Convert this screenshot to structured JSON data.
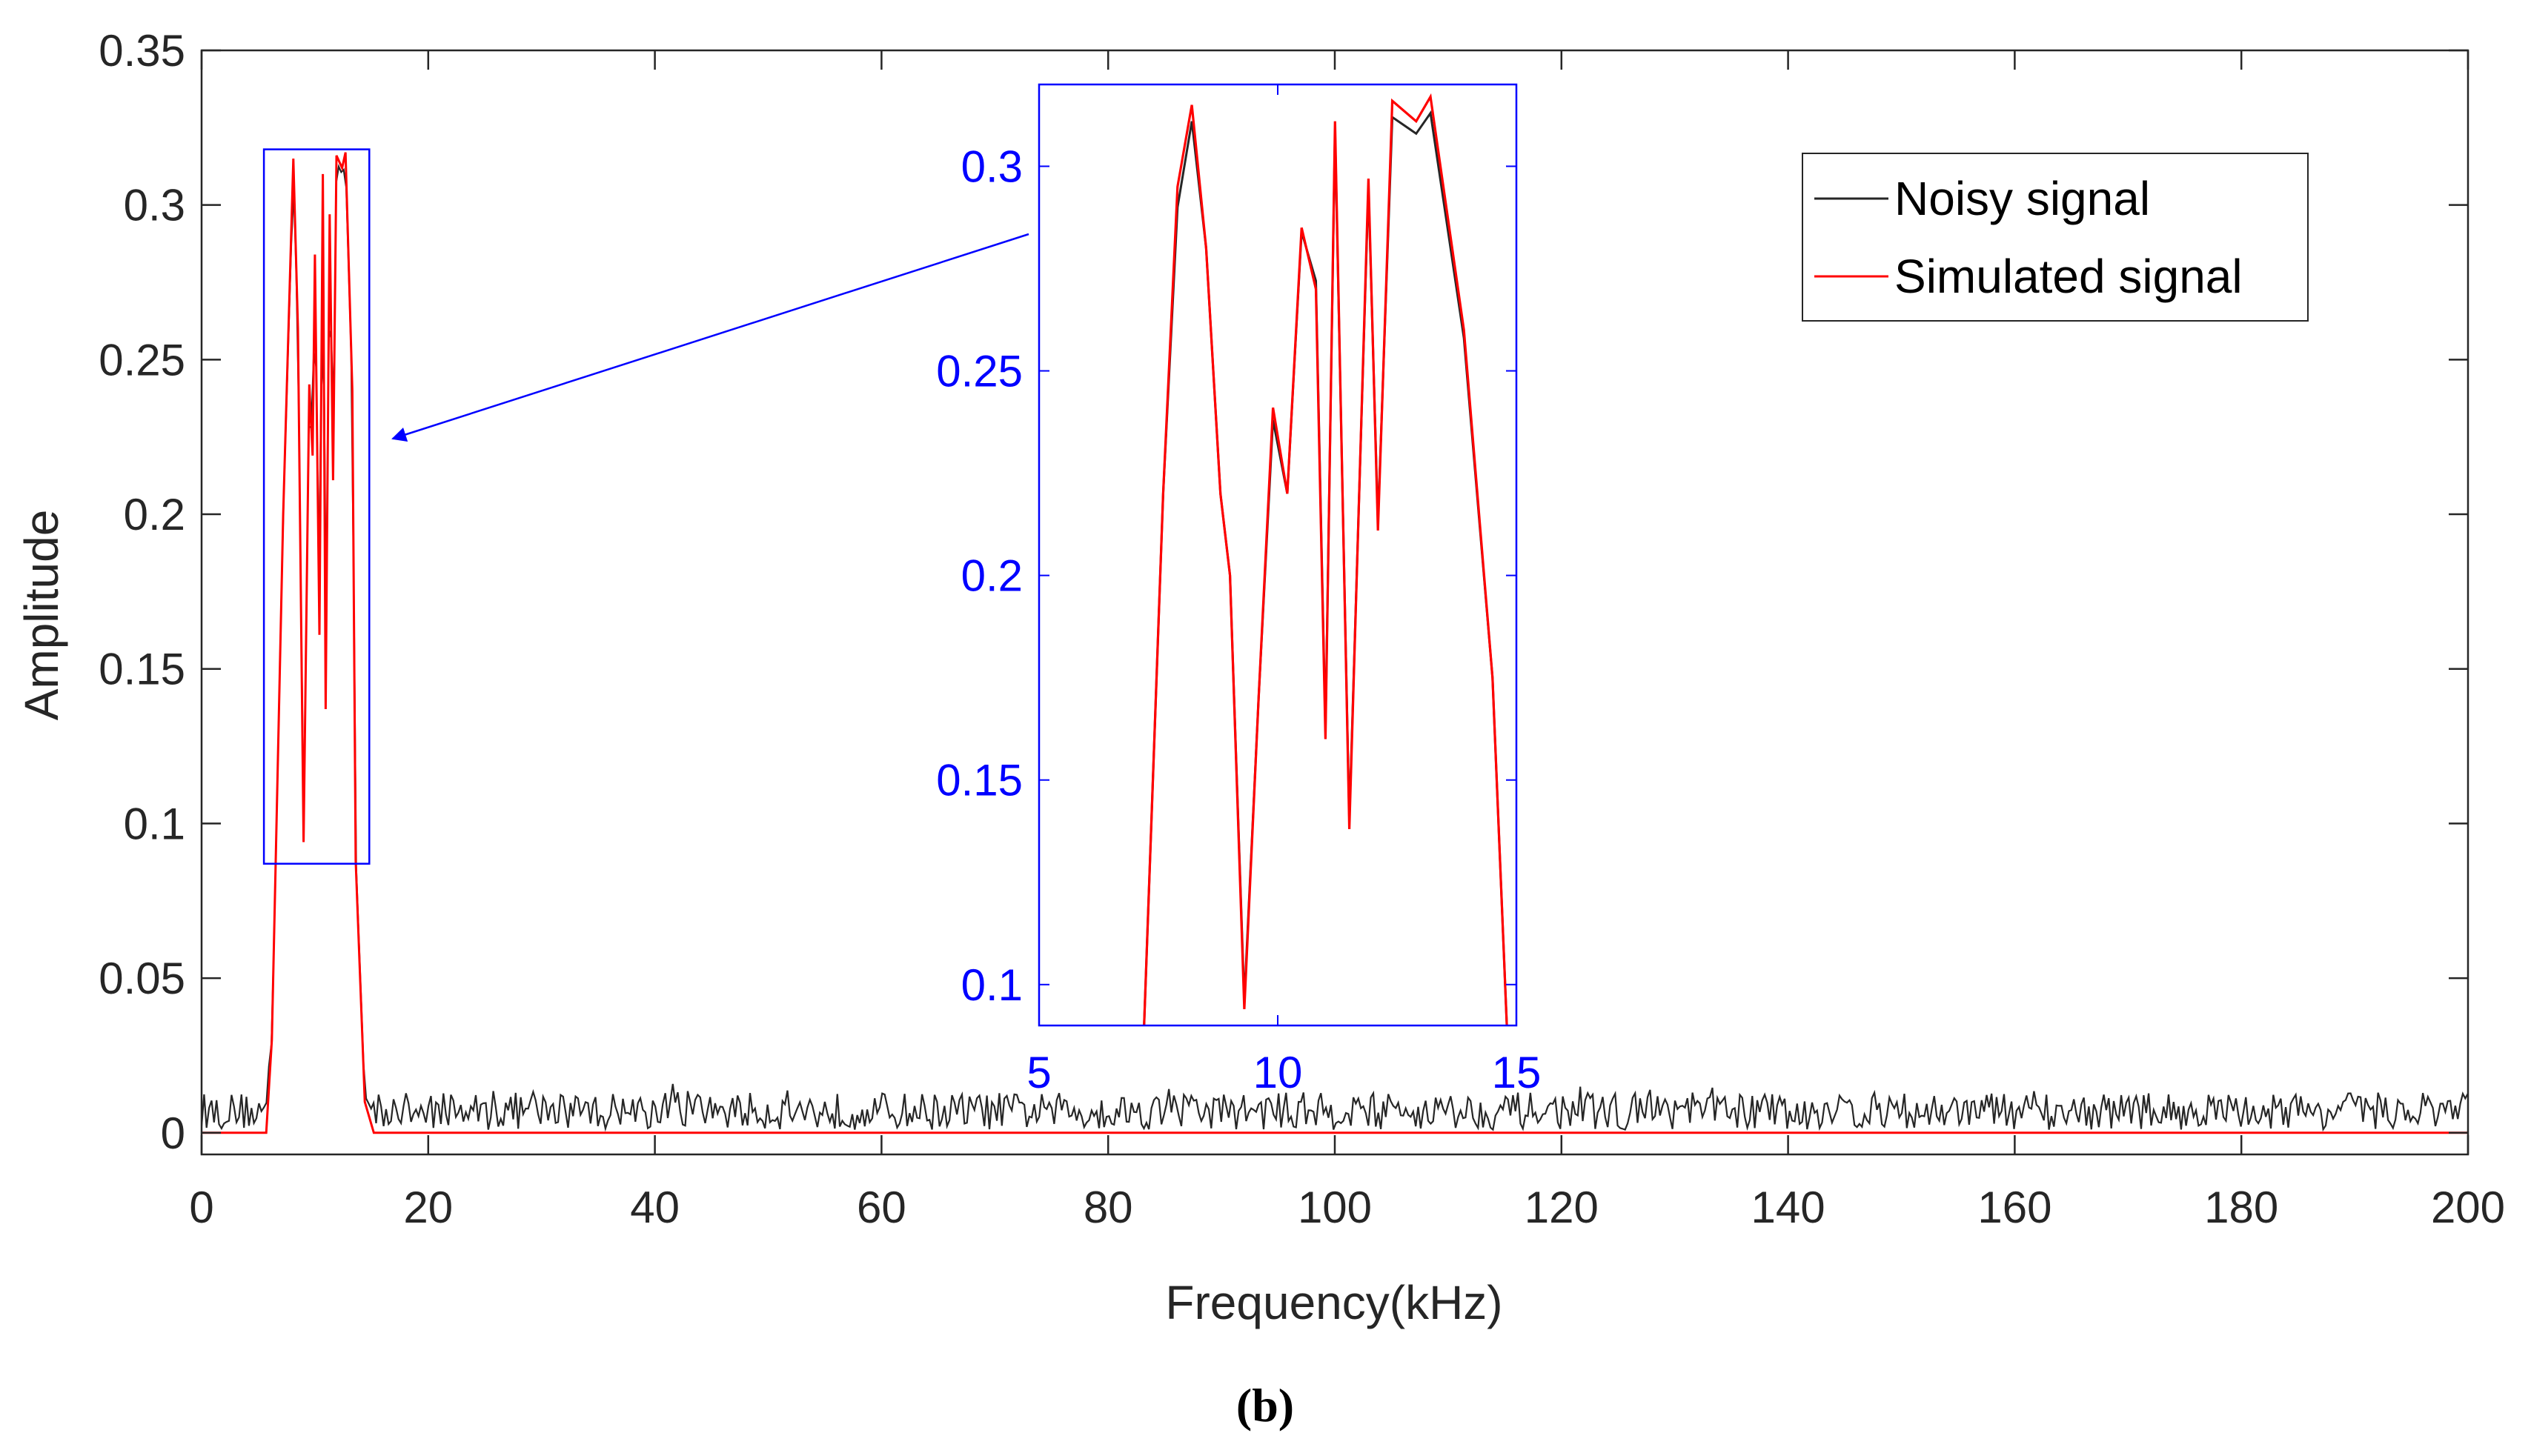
{
  "panel_label": "(b)",
  "colors": {
    "noisy": "#262626",
    "simulated": "#ff0000",
    "inset": "#0000ff",
    "axis": "#262626"
  },
  "chart_data": [
    {
      "id": "main",
      "type": "line",
      "title": "",
      "xlabel": "Frequency(kHz)",
      "ylabel": "Amplitude",
      "xlim": [
        0,
        200
      ],
      "ylim": [
        -0.007,
        0.35
      ],
      "xticks": [
        0,
        20,
        40,
        60,
        80,
        100,
        120,
        140,
        160,
        180,
        200
      ],
      "xtick_labels": [
        "0",
        "20",
        "40",
        "60",
        "80",
        "100",
        "120",
        "140",
        "160",
        "180",
        "200"
      ],
      "yticks": [
        0,
        0.05,
        0.1,
        0.15,
        0.2,
        0.25,
        0.3,
        0.35
      ],
      "ytick_labels": [
        "0",
        "0.05",
        "0.1",
        "0.15",
        "0.2",
        "0.25",
        "0.3",
        "0.35"
      ],
      "grid": false,
      "legend": {
        "placement": "top-right",
        "entries": [
          {
            "label": "Noisy signal",
            "series": "noisy"
          },
          {
            "label": "Simulated signal",
            "series": "simulated"
          }
        ]
      },
      "series": [
        {
          "name": "Noisy signal",
          "key": "noisy",
          "noise_floor": {
            "x_range": [
              0,
              200
            ],
            "mean": 0.008,
            "min": 0.001,
            "max": 0.017
          },
          "points": [
            [
              0,
              0.006
            ],
            [
              5.5,
              0.007
            ],
            [
              6.2,
              0.03
            ],
            [
              7.2,
              0.2
            ],
            [
              8.1,
              0.31
            ],
            [
              8.5,
              0.26
            ],
            [
              9.0,
              0.095
            ],
            [
              9.5,
              0.24
            ],
            [
              9.8,
              0.22
            ],
            [
              10.0,
              0.285
            ],
            [
              10.4,
              0.16
            ],
            [
              10.7,
              0.31
            ],
            [
              10.95,
              0.138
            ],
            [
              11.3,
              0.296
            ],
            [
              11.6,
              0.212
            ],
            [
              11.9,
              0.314
            ],
            [
              12.4,
              0.31
            ],
            [
              12.7,
              0.313
            ],
            [
              13.3,
              0.24
            ],
            [
              13.6,
              0.09
            ],
            [
              14.4,
              0.012
            ],
            [
              15.2,
              0.006
            ],
            [
              200,
              0.007
            ]
          ]
        },
        {
          "name": "Simulated signal",
          "key": "simulated",
          "points": [
            [
              0,
              0.0
            ],
            [
              5.7,
              0.0
            ],
            [
              6.2,
              0.03
            ],
            [
              7.2,
              0.2
            ],
            [
              8.1,
              0.315
            ],
            [
              8.5,
              0.26
            ],
            [
              9.0,
              0.094
            ],
            [
              9.5,
              0.242
            ],
            [
              9.8,
              0.219
            ],
            [
              10.0,
              0.284
            ],
            [
              10.4,
              0.161
            ],
            [
              10.7,
              0.31
            ],
            [
              10.95,
              0.137
            ],
            [
              11.3,
              0.297
            ],
            [
              11.6,
              0.211
            ],
            [
              11.9,
              0.316
            ],
            [
              12.4,
              0.312
            ],
            [
              12.7,
              0.317
            ],
            [
              13.3,
              0.24
            ],
            [
              13.6,
              0.088
            ],
            [
              14.4,
              0.01
            ],
            [
              15.2,
              0.0
            ],
            [
              200,
              0.0
            ]
          ]
        }
      ],
      "annotations": [
        {
          "type": "zoom-box",
          "x_range": [
            5.5,
            14.8
          ],
          "y_range": [
            0.087,
            0.318
          ]
        },
        {
          "type": "arrow",
          "from": "inset",
          "to": "zoom-box"
        }
      ]
    },
    {
      "id": "inset",
      "type": "line",
      "title": "",
      "xlabel": "",
      "ylabel": "",
      "xlim": [
        5,
        15
      ],
      "ylim": [
        0.09,
        0.32
      ],
      "xticks": [
        5,
        10,
        15
      ],
      "xtick_labels": [
        "5",
        "10",
        "15"
      ],
      "yticks": [
        0.1,
        0.15,
        0.2,
        0.25,
        0.3
      ],
      "ytick_labels": [
        "0.1",
        "0.15",
        "0.2",
        "0.25",
        "0.3"
      ],
      "grid": false,
      "series": [
        {
          "name": "Noisy signal",
          "key": "noisy",
          "points": [
            [
              7.2,
              0.09
            ],
            [
              7.6,
              0.22
            ],
            [
              7.9,
              0.29
            ],
            [
              8.2,
              0.311
            ],
            [
              8.5,
              0.28
            ],
            [
              8.8,
              0.22
            ],
            [
              9.0,
              0.2
            ],
            [
              9.3,
              0.096
            ],
            [
              9.6,
              0.17
            ],
            [
              9.9,
              0.238
            ],
            [
              10.2,
              0.22
            ],
            [
              10.5,
              0.284
            ],
            [
              10.8,
              0.272
            ],
            [
              11.0,
              0.162
            ],
            [
              11.2,
              0.309
            ],
            [
              11.5,
              0.14
            ],
            [
              11.9,
              0.295
            ],
            [
              12.1,
              0.213
            ],
            [
              12.4,
              0.312
            ],
            [
              12.9,
              0.308
            ],
            [
              13.2,
              0.313
            ],
            [
              13.9,
              0.258
            ],
            [
              14.5,
              0.175
            ],
            [
              14.8,
              0.09
            ]
          ]
        },
        {
          "name": "Simulated signal",
          "key": "simulated",
          "points": [
            [
              7.2,
              0.09
            ],
            [
              7.6,
              0.22
            ],
            [
              7.9,
              0.295
            ],
            [
              8.2,
              0.315
            ],
            [
              8.5,
              0.28
            ],
            [
              8.8,
              0.22
            ],
            [
              9.0,
              0.2
            ],
            [
              9.3,
              0.094
            ],
            [
              9.6,
              0.17
            ],
            [
              9.9,
              0.241
            ],
            [
              10.2,
              0.22
            ],
            [
              10.5,
              0.285
            ],
            [
              10.8,
              0.27
            ],
            [
              11.0,
              0.16
            ],
            [
              11.2,
              0.311
            ],
            [
              11.5,
              0.138
            ],
            [
              11.9,
              0.297
            ],
            [
              12.1,
              0.211
            ],
            [
              12.4,
              0.316
            ],
            [
              12.9,
              0.311
            ],
            [
              13.2,
              0.317
            ],
            [
              13.9,
              0.26
            ],
            [
              14.5,
              0.175
            ],
            [
              14.8,
              0.09
            ]
          ]
        }
      ]
    }
  ]
}
